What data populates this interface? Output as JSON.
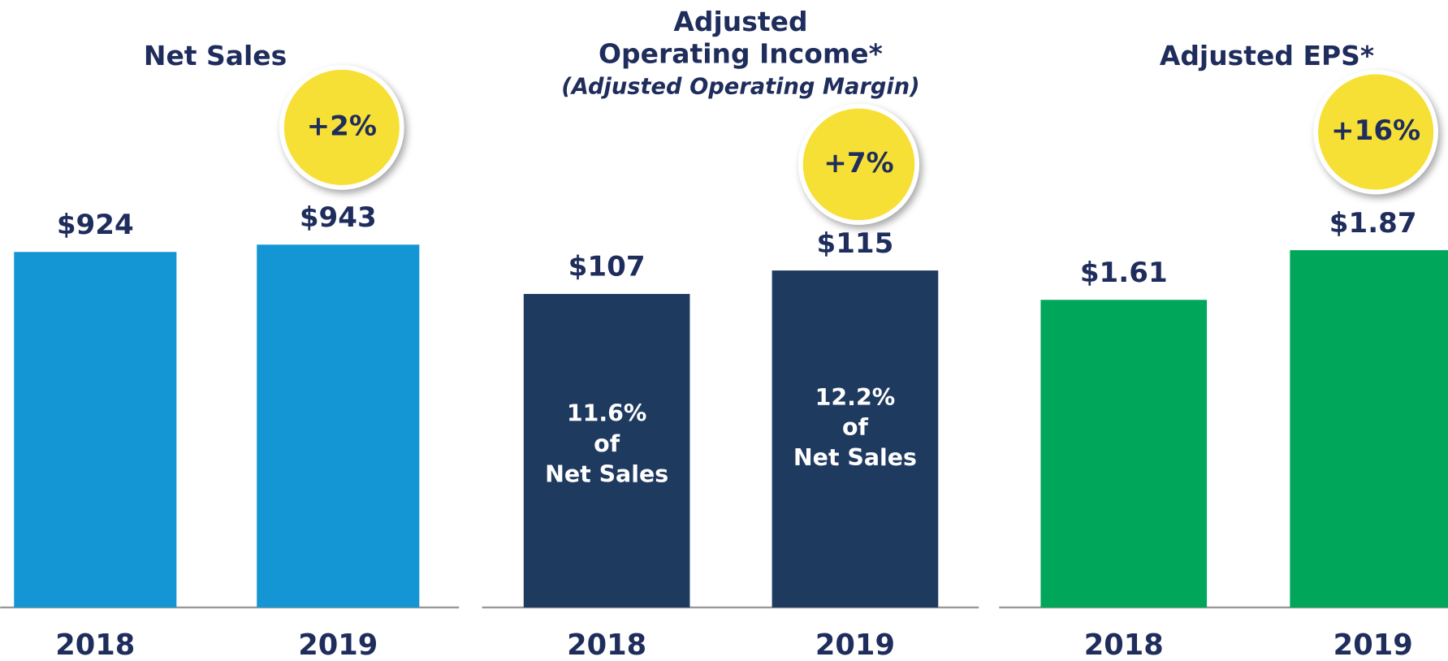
{
  "chart_data": [
    {
      "type": "bar",
      "title": "Net Sales",
      "categories": [
        "2018",
        "2019"
      ],
      "values": [
        924,
        943
      ],
      "value_labels": [
        "$924",
        "$943"
      ],
      "color": "#1496d4",
      "badge": "+2%"
    },
    {
      "type": "bar",
      "title": [
        "Adjusted",
        "Operating Income*"
      ],
      "subtitle": "(Adjusted Operating Margin)",
      "categories": [
        "2018",
        "2019"
      ],
      "values": [
        107,
        115
      ],
      "value_labels": [
        "$107",
        "$115"
      ],
      "color": "#1f3a5f",
      "badge": "+7%",
      "bar_labels": [
        [
          "11.6%",
          "of",
          "Net Sales"
        ],
        [
          "12.2%",
          "of",
          "Net Sales"
        ]
      ]
    },
    {
      "type": "bar",
      "title": "Adjusted EPS*",
      "categories": [
        "2018",
        "2019"
      ],
      "values": [
        1.61,
        1.87
      ],
      "value_labels": [
        "$1.61",
        "$1.87"
      ],
      "color": "#00a65a",
      "badge": "+16%"
    }
  ]
}
